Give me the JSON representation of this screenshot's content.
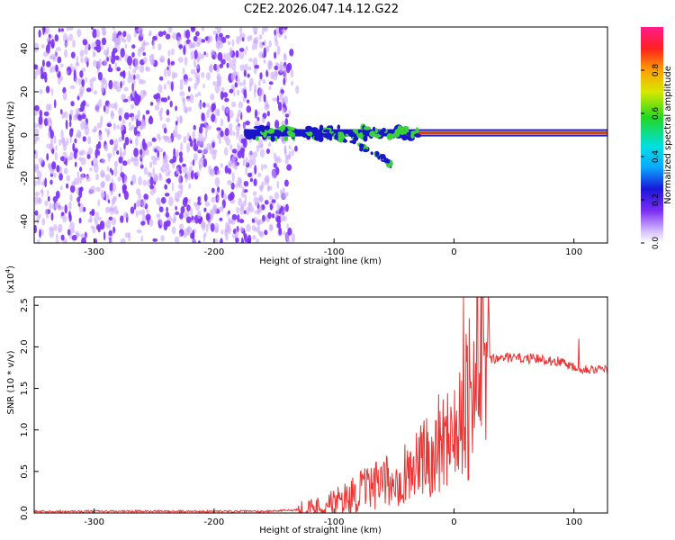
{
  "title": "C2E2.2026.047.14.12.G22",
  "colors": {
    "noise": "#7b2ff7",
    "noise_light": "#c9a8fb",
    "trace_blue": "#1a16c8",
    "trace_green": "#3bd13b",
    "trace_red": "#ff2020",
    "snr_line": "#ee3333"
  },
  "chart_data": [
    {
      "type": "heatmap",
      "name": "spectrogram",
      "xlabel": "Height of straight line (km)",
      "ylabel": "Frequency (Hz)",
      "xlim": [
        -350,
        128
      ],
      "ylim": [
        -50,
        50
      ],
      "xticks": [
        -300,
        -200,
        -100,
        0,
        100
      ],
      "xtick_labels": [
        "-300",
        "-200",
        "-100",
        "0",
        "100"
      ],
      "yticks": [
        -40,
        -20,
        0,
        20,
        40
      ],
      "ytick_labels": [
        "-40",
        "-20",
        "0",
        "20",
        "40"
      ],
      "colorbar": {
        "label": "Normalized spectral amplitude",
        "range": [
          0,
          1
        ],
        "ticks": [
          0.0,
          0.2,
          0.4,
          0.6,
          0.8
        ],
        "tick_labels": [
          "0.0",
          "0.2",
          "0.4",
          "0.6",
          "0.8"
        ]
      },
      "features": {
        "broadband_noise_region_km": [
          -350,
          -140
        ],
        "noise_fade_edge_km": -130,
        "main_signal_frequency_hz": 1,
        "main_signal_start_km": -175,
        "strong_continuous_signal_start_km": -30,
        "descending_branch": [
          [
            -100,
            0
          ],
          [
            -80,
            -5
          ],
          [
            -60,
            -10
          ],
          [
            -52,
            -14
          ]
        ]
      }
    },
    {
      "type": "line",
      "name": "snr",
      "xlabel": "Height of straight line (km)",
      "ylabel": "SNR (10 * v/v)",
      "multiplier_label": "(x10",
      "multiplier_exp": "4",
      "multiplier_close": ")",
      "xlim": [
        -350,
        128
      ],
      "ylim": [
        0,
        2.6
      ],
      "xticks": [
        -300,
        -200,
        -100,
        0,
        100
      ],
      "xtick_labels": [
        "-300",
        "-200",
        "-100",
        "0",
        "100"
      ],
      "yticks": [
        0.0,
        0.5,
        1.0,
        1.5,
        2.0,
        2.5
      ],
      "ytick_labels": [
        "0.0",
        "0.5",
        "1.0",
        "1.5",
        "2.0",
        "2.5"
      ],
      "series": [
        {
          "name": "SNR",
          "x": [
            -350,
            -300,
            -250,
            -200,
            -160,
            -140,
            -120,
            -110,
            -100,
            -90,
            -80,
            -70,
            -60,
            -50,
            -40,
            -30,
            -20,
            -15,
            -10,
            -5,
            0,
            5,
            8,
            10,
            15,
            20,
            30,
            40,
            50,
            60,
            70,
            80,
            90,
            100,
            105,
            110,
            120,
            128
          ],
          "y": [
            0.02,
            0.02,
            0.02,
            0.02,
            0.02,
            0.03,
            0.05,
            0.08,
            0.12,
            0.18,
            0.25,
            0.3,
            0.35,
            0.4,
            0.5,
            0.6,
            0.7,
            0.8,
            0.9,
            0.98,
            1.1,
            1.2,
            1.3,
            1.45,
            1.6,
            1.75,
            1.84,
            1.87,
            1.87,
            1.86,
            1.85,
            1.84,
            1.82,
            1.76,
            1.74,
            1.74,
            1.73,
            1.72
          ]
        }
      ],
      "spikes": [
        {
          "x": 8,
          "y": 2.6
        },
        {
          "x": 104,
          "y": 2.1
        },
        {
          "x": 12,
          "y": 0.4
        }
      ]
    }
  ]
}
